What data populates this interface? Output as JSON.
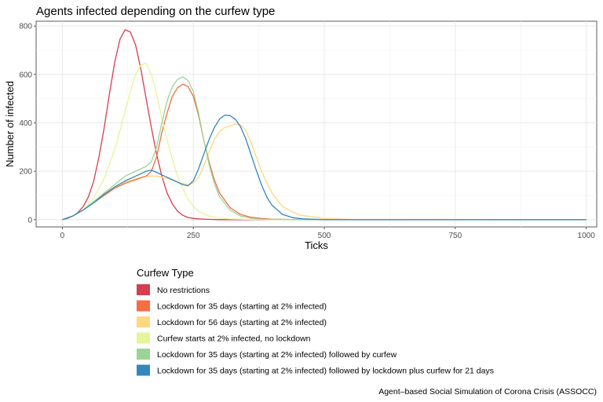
{
  "chart_data": {
    "type": "line",
    "title": "Agents infected depending on the curfew type",
    "xlabel": "Ticks",
    "ylabel": "Number of infected",
    "xlim": [
      -50,
      1020
    ],
    "ylim": [
      -30,
      820
    ],
    "xticks": [
      0,
      250,
      500,
      750,
      1000
    ],
    "yticks": [
      0,
      200,
      400,
      600,
      800
    ],
    "grid": true,
    "legend": {
      "title": "Curfew Type",
      "placement": "bottom"
    },
    "caption": "Agent–based Social Simulation of Corona Crisis (ASSOCC)",
    "series": [
      {
        "name": "No restrictions",
        "color": "#d53e4f",
        "x": [
          0,
          10,
          20,
          30,
          40,
          50,
          60,
          70,
          80,
          90,
          100,
          110,
          120,
          130,
          140,
          150,
          160,
          170,
          180,
          190,
          200,
          210,
          220,
          230,
          240,
          250,
          260,
          280,
          300,
          350,
          400,
          1000
        ],
        "y": [
          0,
          5,
          15,
          30,
          55,
          95,
          160,
          260,
          380,
          520,
          650,
          745,
          785,
          775,
          720,
          620,
          500,
          380,
          270,
          180,
          110,
          65,
          35,
          18,
          9,
          5,
          3,
          1,
          0,
          0,
          0,
          0
        ]
      },
      {
        "name": "Lockdown for 35 days (starting at 2% infected)",
        "color": "#f46d43",
        "x": [
          0,
          20,
          40,
          60,
          80,
          100,
          120,
          140,
          160,
          170,
          180,
          190,
          200,
          210,
          220,
          230,
          240,
          250,
          260,
          270,
          280,
          290,
          300,
          320,
          340,
          360,
          380,
          400,
          450,
          500,
          1000
        ],
        "y": [
          0,
          15,
          40,
          70,
          100,
          130,
          150,
          165,
          180,
          200,
          260,
          360,
          440,
          510,
          545,
          560,
          550,
          510,
          430,
          330,
          240,
          165,
          110,
          50,
          22,
          10,
          5,
          2,
          0,
          0,
          0
        ]
      },
      {
        "name": "Lockdown for 56 days (starting at 2% infected)",
        "color": "#fdd87f",
        "x": [
          0,
          20,
          40,
          60,
          80,
          100,
          120,
          140,
          160,
          180,
          200,
          220,
          240,
          250,
          260,
          270,
          280,
          290,
          300,
          310,
          320,
          330,
          340,
          350,
          360,
          370,
          380,
          400,
          420,
          450,
          500,
          550,
          1000
        ],
        "y": [
          0,
          15,
          40,
          70,
          100,
          130,
          155,
          170,
          180,
          180,
          170,
          155,
          145,
          150,
          175,
          220,
          280,
          330,
          365,
          380,
          388,
          395,
          392,
          370,
          320,
          260,
          200,
          110,
          55,
          20,
          5,
          1,
          0
        ]
      },
      {
        "name": "Curfew starts at 2% infected, no lockdown",
        "color": "#e6f598",
        "x": [
          0,
          20,
          40,
          60,
          80,
          100,
          110,
          120,
          130,
          140,
          150,
          160,
          170,
          180,
          190,
          200,
          210,
          220,
          230,
          240,
          250,
          260,
          280,
          300,
          320,
          350,
          400,
          450,
          1000
        ],
        "y": [
          0,
          15,
          40,
          90,
          170,
          290,
          370,
          450,
          530,
          600,
          640,
          645,
          600,
          520,
          420,
          330,
          250,
          180,
          125,
          85,
          55,
          35,
          15,
          6,
          3,
          1,
          0,
          0,
          0
        ]
      },
      {
        "name": "Lockdown for 35 days (starting at 2% infected) followed by curfew",
        "color": "#99d594",
        "x": [
          0,
          20,
          40,
          60,
          80,
          100,
          120,
          140,
          160,
          170,
          180,
          190,
          200,
          210,
          220,
          230,
          240,
          250,
          260,
          270,
          280,
          290,
          300,
          320,
          340,
          360,
          380,
          400,
          450,
          1000
        ],
        "y": [
          0,
          15,
          40,
          75,
          110,
          145,
          180,
          200,
          220,
          240,
          300,
          400,
          490,
          550,
          580,
          590,
          575,
          530,
          440,
          330,
          230,
          150,
          95,
          40,
          15,
          6,
          2,
          1,
          0,
          0
        ]
      },
      {
        "name": "Lockdown for 35 days (starting at 2% infected) followed by lockdown plus curfew for 21 days",
        "color": "#3288bd",
        "x": [
          0,
          20,
          40,
          60,
          80,
          100,
          120,
          140,
          160,
          170,
          180,
          190,
          200,
          210,
          220,
          230,
          240,
          250,
          260,
          270,
          280,
          290,
          300,
          310,
          320,
          330,
          340,
          350,
          360,
          370,
          380,
          390,
          400,
          420,
          440,
          460,
          500,
          550,
          1000
        ],
        "y": [
          0,
          15,
          40,
          70,
          105,
          135,
          160,
          180,
          200,
          205,
          195,
          185,
          175,
          165,
          155,
          145,
          140,
          160,
          210,
          270,
          330,
          380,
          415,
          432,
          430,
          415,
          385,
          335,
          270,
          205,
          145,
          95,
          60,
          22,
          8,
          3,
          0,
          0,
          0
        ]
      }
    ]
  }
}
